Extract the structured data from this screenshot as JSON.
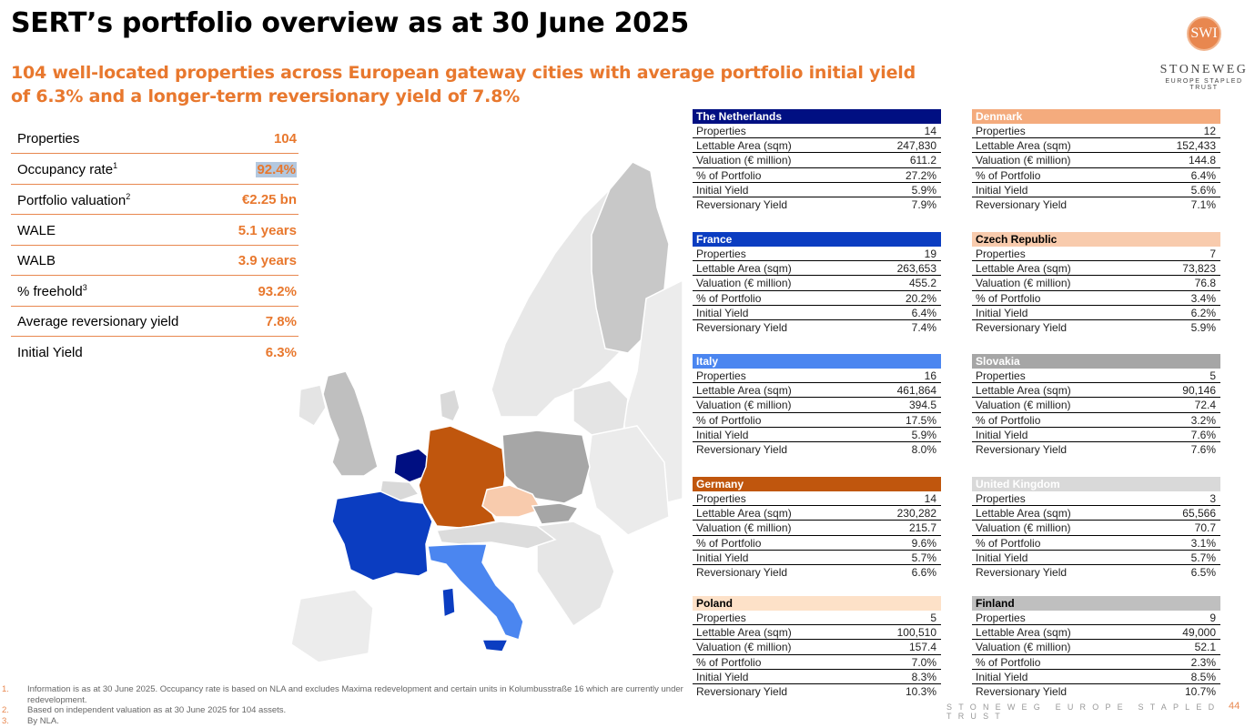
{
  "title": "SERT’s portfolio overview as at 30 June 2025",
  "subtitle": "104 well-located properties across European gateway cities with average portfolio initial yield of 6.3% and a  longer-term reversionary yield of 7.8%",
  "logo": {
    "mark": "SWI",
    "name": "STONEWEG",
    "tagline": "EUROPE STAPLED TRUST"
  },
  "kpis": [
    {
      "label": "Properties",
      "sup": "",
      "value": "104"
    },
    {
      "label": "Occupancy rate",
      "sup": "1",
      "value": "92.4%"
    },
    {
      "label": "Portfolio valuation",
      "sup": "2",
      "value": "€2.25 bn"
    },
    {
      "label": "WALE",
      "sup": "",
      "value": "5.1 years"
    },
    {
      "label": "WALB",
      "sup": "",
      "value": "3.9 years"
    },
    {
      "label": "% freehold",
      "sup": "3",
      "value": "93.2%"
    },
    {
      "label": "Average reversionary yield",
      "sup": "",
      "value": "7.8%"
    },
    {
      "label": "Initial Yield",
      "sup": "",
      "value": "6.3%"
    }
  ],
  "row_labels": [
    "Properties",
    "Lettable Area (sqm)",
    "Valuation (€ million)",
    "% of Portfolio",
    "Initial Yield",
    "Reversionary Yield"
  ],
  "countries": [
    {
      "name": "The Netherlands",
      "color": "#000f82",
      "text": "#ffffff",
      "values": [
        "14",
        "247,830",
        "611.2",
        "27.2%",
        "5.9%",
        "7.9%"
      ]
    },
    {
      "name": "France",
      "color": "#0b3dc1",
      "text": "#ffffff",
      "values": [
        "19",
        "263,653",
        "455.2",
        "20.2%",
        "6.4%",
        "7.4%"
      ]
    },
    {
      "name": "Italy",
      "color": "#4b86f0",
      "text": "#ffffff",
      "values": [
        "16",
        "461,864",
        "394.5",
        "17.5%",
        "5.9%",
        "8.0%"
      ]
    },
    {
      "name": "Germany",
      "color": "#c0560d",
      "text": "#ffffff",
      "values": [
        "14",
        "230,282",
        "215.7",
        "9.6%",
        "5.7%",
        "6.6%"
      ]
    },
    {
      "name": "Poland",
      "color": "#fde1c8",
      "text": "#000000",
      "values": [
        "5",
        "100,510",
        "157.4",
        "7.0%",
        "8.3%",
        "10.3%"
      ]
    },
    {
      "name": "Denmark",
      "color": "#f4ab7d",
      "text": "#ffffff",
      "values": [
        "12",
        "152,433",
        "144.8",
        "6.4%",
        "5.6%",
        "7.1%"
      ]
    },
    {
      "name": "Czech Republic",
      "color": "#f8cbad",
      "text": "#000000",
      "values": [
        "7",
        "73,823",
        "76.8",
        "3.4%",
        "6.2%",
        "5.9%"
      ]
    },
    {
      "name": "Slovakia",
      "color": "#a6a6a6",
      "text": "#ffffff",
      "values": [
        "5",
        "90,146",
        "72.4",
        "3.2%",
        "7.6%",
        "7.6%"
      ]
    },
    {
      "name": "United Kingdom",
      "color": "#d9d9d9",
      "text": "#ffffff",
      "values": [
        "3",
        "65,566",
        "70.7",
        "3.1%",
        "5.7%",
        "6.5%"
      ]
    },
    {
      "name": "Finland",
      "color": "#bfbfbf",
      "text": "#000000",
      "values": [
        "9",
        "49,000",
        "52.1",
        "2.3%",
        "8.5%",
        "10.7%"
      ]
    }
  ],
  "footnotes": [
    {
      "num": "1.",
      "text": "Information is as at 30 June 2025. Occupancy rate is based on NLA and excludes Maxima redevelopment and certain units in Kolumbusstraße 16 which are currently under redevelopment."
    },
    {
      "num": "2.",
      "text": "Based on independent valuation as at 30 June 2025 for 104 assets."
    },
    {
      "num": "3.",
      "text": "By NLA."
    }
  ],
  "footer": {
    "brand": "STONEWEG EUROPE STAPLED TRUST",
    "page": "44"
  }
}
